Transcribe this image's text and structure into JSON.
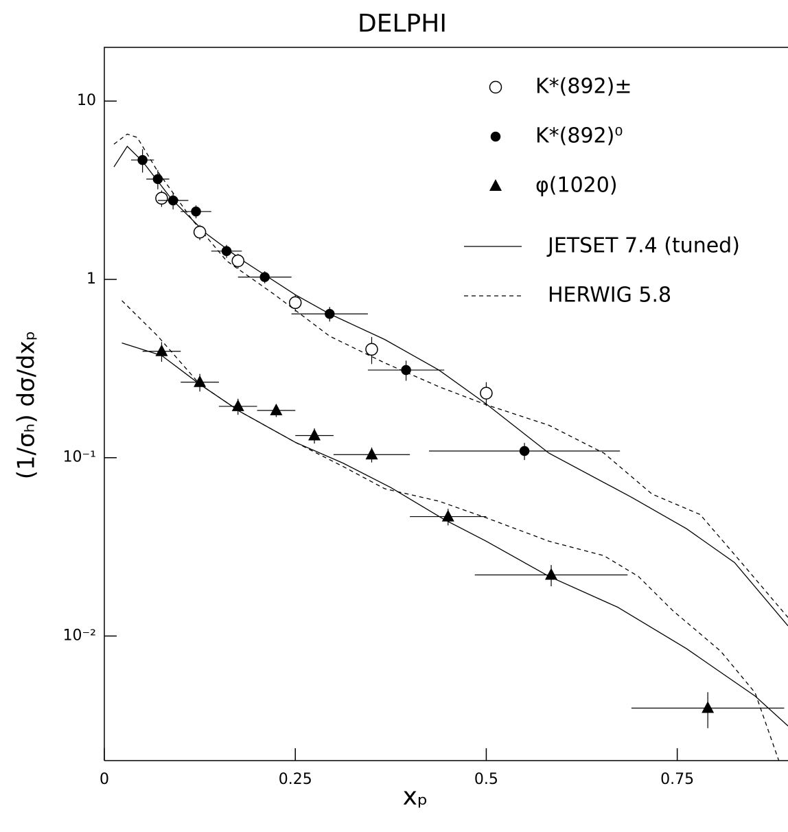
{
  "chart_data": {
    "type": "scatter",
    "title": "DELPHI",
    "xlabel": "xₚ",
    "ylabel": "(1/σₕ) dσ/dxₚ",
    "xlim": [
      0,
      0.895
    ],
    "ylim": [
      0.002,
      20
    ],
    "ylog": true,
    "xticks": [
      0,
      0.25,
      0.5,
      0.75
    ],
    "yticks": [
      {
        "value": 0.01,
        "label": "10⁻²"
      },
      {
        "value": 0.1,
        "label": "10⁻¹"
      },
      1,
      10
    ],
    "series": [
      {
        "name": "K*(892)±",
        "marker": "open-circle",
        "color": "#000000",
        "x": [
          0.075,
          0.125,
          0.175,
          0.25,
          0.35,
          0.5
        ],
        "values": [
          2.85,
          1.84,
          1.27,
          0.74,
          0.405,
          0.23
        ],
        "yerr": [
          0.3,
          0.18,
          0.12,
          0.08,
          0.07,
          0.035
        ]
      },
      {
        "name": "K*(892)⁰",
        "marker": "filled-circle",
        "color": "#000000",
        "x": [
          0.05,
          0.07,
          0.09,
          0.12,
          0.16,
          0.21,
          0.295,
          0.395,
          0.55
        ],
        "values": [
          4.67,
          3.65,
          2.77,
          2.4,
          1.44,
          1.03,
          0.64,
          0.31,
          0.109
        ],
        "xerr": [
          0.015,
          0.015,
          0.02,
          0.02,
          0.02,
          0.035,
          0.05,
          0.05,
          0.125
        ],
        "yerr": [
          0.7,
          0.45,
          0.3,
          0.2,
          0.12,
          0.08,
          0.06,
          0.04,
          0.012
        ]
      },
      {
        "name": "φ(1020)",
        "marker": "filled-triangle",
        "color": "#000000",
        "x": [
          0.075,
          0.125,
          0.175,
          0.225,
          0.275,
          0.35,
          0.45,
          0.585,
          0.79
        ],
        "values": [
          0.395,
          0.265,
          0.194,
          0.184,
          0.133,
          0.104,
          0.0467,
          0.022,
          0.00394
        ],
        "xerr": [
          0.025,
          0.025,
          0.025,
          0.025,
          0.025,
          0.05,
          0.05,
          0.1,
          0.1
        ],
        "yerr": [
          0.05,
          0.03,
          0.02,
          0.015,
          0.013,
          0.01,
          0.005,
          0.003,
          0.0009
        ]
      }
    ],
    "models": [
      {
        "name": "JETSET 7.4 (tuned)",
        "dash": "solid",
        "curves": [
          {
            "x": [
              0.0126,
              0.03,
              0.05,
              0.088,
              0.133,
              0.178,
              0.25,
              0.295,
              0.367,
              0.438,
              0.5,
              0.582,
              0.69,
              0.762,
              0.825,
              0.895
            ],
            "values": [
              4.27,
              5.57,
              4.59,
              2.82,
              1.81,
              1.3,
              0.82,
              0.64,
              0.46,
              0.31,
              0.2,
              0.106,
              0.06,
              0.04,
              0.0258,
              0.0114
            ]
          },
          {
            "x": [
              0.023,
              0.075,
              0.125,
              0.178,
              0.25,
              0.313,
              0.375,
              0.445,
              0.5,
              0.582,
              0.672,
              0.762,
              0.807,
              0.852,
              0.895
            ],
            "values": [
              0.44,
              0.374,
              0.258,
              0.181,
              0.122,
              0.093,
              0.068,
              0.045,
              0.034,
              0.0216,
              0.0145,
              0.0085,
              0.00625,
              0.0046,
              0.00313
            ]
          }
        ]
      },
      {
        "name": "HERWIG 5.8",
        "dash": "dashed",
        "curves": [
          {
            "x": [
              0.0126,
              0.03,
              0.043,
              0.07,
              0.115,
              0.16,
              0.223,
              0.295,
              0.367,
              0.438,
              0.5,
              0.582,
              0.654,
              0.717,
              0.78,
              0.834,
              0.895
            ],
            "values": [
              5.73,
              6.53,
              6.25,
              4.02,
              2.16,
              1.27,
              0.82,
              0.48,
              0.34,
              0.25,
              0.198,
              0.152,
              0.106,
              0.0625,
              0.048,
              0.0258,
              0.0127
            ]
          },
          {
            "x": [
              0.023,
              0.07,
              0.125,
              0.178,
              0.25,
              0.313,
              0.367,
              0.438,
              0.5,
              0.582,
              0.654,
              0.699,
              0.744,
              0.807,
              0.852,
              0.883
            ],
            "values": [
              0.76,
              0.48,
              0.258,
              0.181,
              0.122,
              0.089,
              0.067,
              0.057,
              0.046,
              0.034,
              0.0282,
              0.0216,
              0.0139,
              0.0082,
              0.0048,
              0.002
            ]
          }
        ]
      }
    ]
  }
}
